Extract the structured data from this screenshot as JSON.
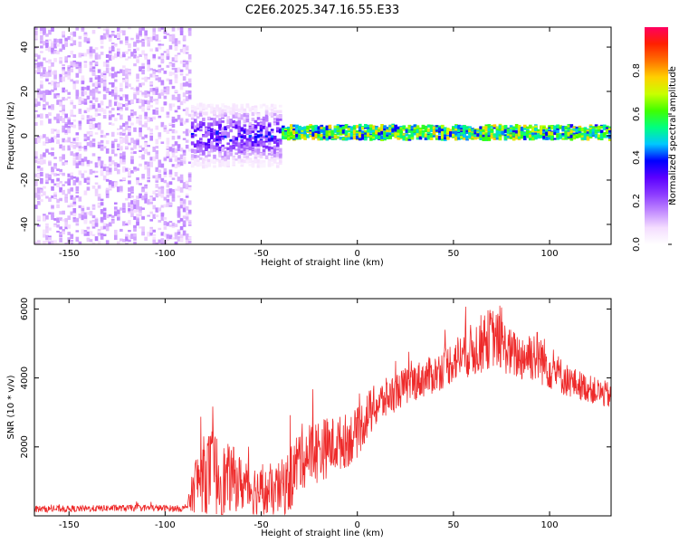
{
  "title": "C2E6.2025.347.16.55.E33",
  "chart_data": [
    {
      "type": "heatmap",
      "name": "spectrogram",
      "xlabel": "Height of straight line (km)",
      "ylabel": "Frequency (Hz)",
      "xlim": [
        -168,
        132
      ],
      "ylim": [
        -49,
        49
      ],
      "xticks": [
        -150,
        -100,
        -50,
        0,
        50,
        100
      ],
      "yticks": [
        -40,
        -20,
        0,
        20,
        40
      ],
      "colorbar": {
        "label": "Normalized spectral amplitude",
        "range": [
          0,
          1
        ],
        "ticks": [
          "0.0",
          "0.2",
          "0.4",
          "0.6",
          "0.8"
        ],
        "colors": [
          "#ffffff",
          "#f4ddff",
          "#c189ff",
          "#8c3bff",
          "#5b00ff",
          "#0000ff",
          "#00c8ff",
          "#00ff80",
          "#40ff00",
          "#c8ff00",
          "#ffd000",
          "#ff7000",
          "#ff2000",
          "#ff0060"
        ]
      },
      "regions": [
        {
          "x_from": -168,
          "x_to": -87,
          "description_key": "broadband noise",
          "amplitude": 0.12,
          "freq_spread": 49
        },
        {
          "x_from": -87,
          "x_to": -40,
          "amplitude": 0.32,
          "freq_spread": 14,
          "center_freq": 0
        },
        {
          "x_from": -40,
          "x_to": 132,
          "amplitude": 0.6,
          "freq_spread": 3,
          "center_freq": 1.5
        }
      ]
    },
    {
      "type": "line",
      "name": "snr",
      "xlabel": "Height of straight line (km)",
      "ylabel": "SNR (10 * v/v)",
      "xlim": [
        -168,
        132
      ],
      "ylim": [
        0,
        6300
      ],
      "xticks": [
        -150,
        -100,
        -50,
        0,
        50,
        100
      ],
      "yticks": [
        2000,
        4000,
        6000
      ],
      "series": [
        {
          "name": "SNR",
          "color": "#ee2a2a",
          "x": [
            -168,
            -150,
            -130,
            -110,
            -90,
            -87,
            -85,
            -80,
            -75,
            -70,
            -65,
            -60,
            -55,
            -50,
            -45,
            -40,
            -35,
            -30,
            -25,
            -20,
            -15,
            -10,
            -5,
            0,
            5,
            10,
            20,
            30,
            40,
            50,
            55,
            60,
            65,
            70,
            75,
            80,
            85,
            90,
            95,
            100,
            110,
            120,
            130,
            132
          ],
          "values": [
            200,
            200,
            220,
            230,
            210,
            400,
            900,
            1200,
            1300,
            1000,
            1100,
            900,
            800,
            700,
            600,
            800,
            1000,
            1700,
            1800,
            1900,
            2000,
            2100,
            2200,
            2400,
            2900,
            3200,
            3600,
            3900,
            4100,
            4500,
            4700,
            4800,
            5000,
            5200,
            5000,
            4700,
            4600,
            4700,
            4600,
            4300,
            3900,
            3700,
            3500,
            3500
          ],
          "noise_amplitude": [
            60,
            60,
            60,
            60,
            60,
            200,
            500,
            700,
            800,
            700,
            600,
            500,
            500,
            450,
            450,
            500,
            600,
            600,
            600,
            600,
            550,
            500,
            500,
            450,
            450,
            400,
            350,
            350,
            350,
            400,
            450,
            500,
            550,
            550,
            500,
            450,
            450,
            500,
            500,
            400,
            300,
            250,
            250,
            250
          ]
        }
      ]
    }
  ]
}
